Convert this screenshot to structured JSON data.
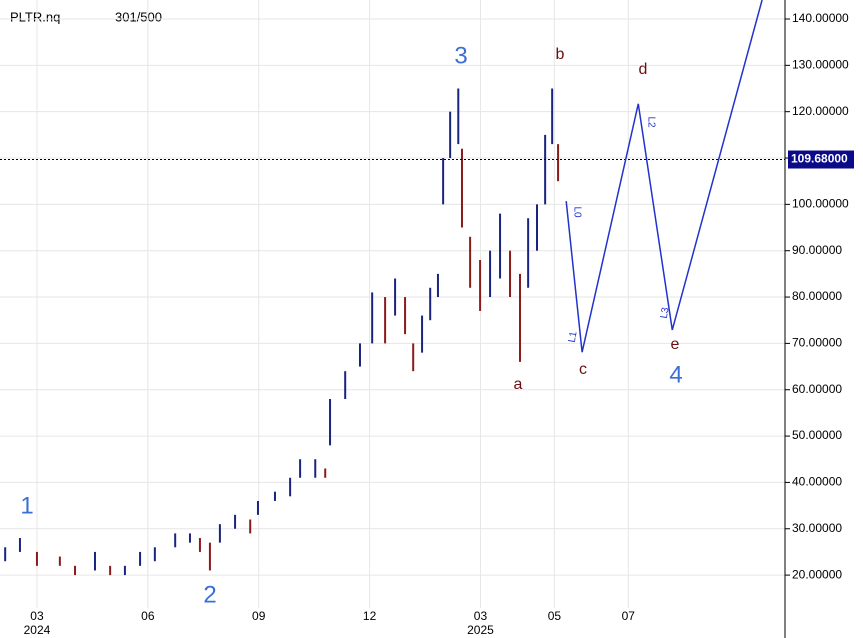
{
  "chart_data": {
    "type": "hilo",
    "symbol": "PLTR.nq",
    "counter": "301/500",
    "xlim": [
      1,
      22.24
    ],
    "ylim": [
      12.9,
      144.1
    ],
    "xticks": [
      {
        "value": 2,
        "label": "03"
      },
      {
        "value": 5,
        "label": "06"
      },
      {
        "value": 8,
        "label": "09"
      },
      {
        "value": 11,
        "label": "12"
      },
      {
        "value": 14,
        "label": "03"
      },
      {
        "value": 16,
        "label": "05"
      },
      {
        "value": 18,
        "label": "07"
      }
    ],
    "year_labels": [
      {
        "value": 2,
        "label": "2024"
      },
      {
        "value": 14,
        "label": "2025"
      }
    ],
    "yticks": [
      {
        "value": 20,
        "label": "20.00000"
      },
      {
        "value": 30,
        "label": "30.00000"
      },
      {
        "value": 40,
        "label": "40.00000"
      },
      {
        "value": 50,
        "label": "50.00000"
      },
      {
        "value": 60,
        "label": "60.00000"
      },
      {
        "value": 70,
        "label": "70.00000"
      },
      {
        "value": 80,
        "label": "80.00000"
      },
      {
        "value": 90,
        "label": "90.00000"
      },
      {
        "value": 100,
        "label": "100.00000"
      },
      {
        "value": 110,
        "label": "110.00000"
      },
      {
        "value": 120,
        "label": "120.00000"
      },
      {
        "value": 130,
        "label": "130.00000"
      },
      {
        "value": 140,
        "label": "140.00000"
      }
    ],
    "grid": true,
    "up_color": "#1a237e",
    "down_color": "#8b1a1a",
    "x": [
      1.14,
      1.54,
      2.0,
      2.62,
      3.03,
      3.57,
      3.98,
      4.38,
      4.79,
      5.19,
      5.74,
      6.14,
      6.41,
      6.68,
      6.95,
      7.36,
      7.77,
      7.98,
      8.44,
      8.85,
      9.12,
      9.53,
      9.8,
      9.93,
      10.34,
      10.74,
      11.07,
      11.42,
      11.69,
      11.96,
      12.18,
      12.42,
      12.64,
      12.85,
      12.99,
      13.18,
      13.4,
      13.5,
      13.72,
      13.99,
      14.26,
      14.53,
      14.8,
      15.07,
      15.29,
      15.53,
      15.75,
      15.94,
      16.1
    ],
    "high": [
      26,
      28,
      25,
      24,
      22,
      25,
      22,
      22,
      25,
      26,
      29,
      29,
      28,
      27,
      31,
      33,
      32,
      36,
      38,
      41,
      45,
      45,
      43,
      58,
      64,
      70,
      81,
      80,
      84,
      80,
      70,
      76,
      82,
      85,
      110,
      120,
      125,
      112,
      93,
      88,
      90,
      98,
      90,
      85,
      97,
      100,
      115,
      125,
      113
    ],
    "low": [
      23,
      25,
      22,
      22,
      20,
      21,
      20,
      20,
      22,
      23,
      26,
      27,
      25,
      21,
      27,
      30,
      29,
      33,
      36,
      37,
      41,
      41,
      41,
      48,
      58,
      65,
      70,
      70,
      76,
      72,
      64,
      68,
      75,
      80,
      100,
      110,
      113,
      95,
      82,
      77,
      80,
      84,
      80,
      66,
      82,
      90,
      100,
      113,
      105
    ],
    "last": {
      "value": 109.68,
      "label": "109.68000"
    },
    "projection": {
      "color": "#2233cc",
      "x": [
        16.32,
        16.75,
        18.27,
        19.19,
        21.62
      ],
      "y": [
        100.7,
        68.1,
        121.7,
        72.9,
        144.1
      ],
      "labels": [
        "L0",
        "L1",
        "L2",
        "L3"
      ]
    },
    "wave_labels": {
      "color": "#3a6fd8",
      "texts": [
        "1",
        "2",
        "3",
        "4"
      ]
    },
    "sub_labels": {
      "color": "#6b0f0f",
      "texts": [
        "a",
        "b",
        "c",
        "d",
        "e"
      ]
    }
  }
}
